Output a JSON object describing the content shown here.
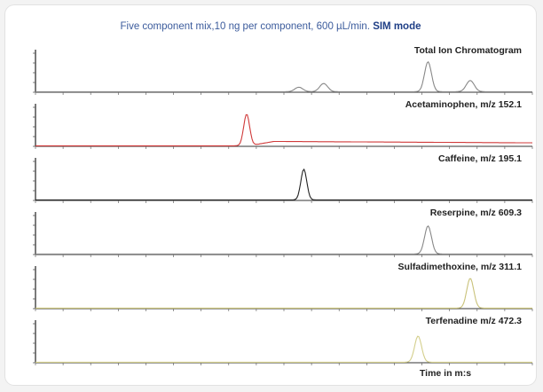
{
  "figure": {
    "title_plain": "Five component mix,10 ng per component, 600 µL/min.",
    "title_mode": "SIM mode"
  },
  "chart_data": {
    "type": "line",
    "title": "Five component mix,10 ng per component, 600 µL/min. SIM mode",
    "xlabel": "Time in m:s",
    "grid": false,
    "series": [
      {
        "name": "Total Ion Chromatogram",
        "color": "#888888",
        "peaks": [
          {
            "x": 0.53,
            "height": 0.12,
            "width": 0.008
          },
          {
            "x": 0.58,
            "height": 0.22,
            "width": 0.008
          },
          {
            "x": 0.79,
            "height": 0.8,
            "width": 0.007
          },
          {
            "x": 0.875,
            "height": 0.3,
            "width": 0.008
          }
        ],
        "baseline_drift": 0.0
      },
      {
        "name": "Acetaminophen, m/z 152.1",
        "color": "#d03a3a",
        "peaks": [
          {
            "x": 0.425,
            "height": 0.85,
            "width": 0.006
          }
        ],
        "baseline_drift": 0.12
      },
      {
        "name": "Caffeine, m/z 195.1",
        "color": "#222222",
        "peaks": [
          {
            "x": 0.54,
            "height": 0.82,
            "width": 0.006
          }
        ],
        "baseline_drift": 0.0
      },
      {
        "name": "Reserpine, m/z 609.3",
        "color": "#888888",
        "peaks": [
          {
            "x": 0.79,
            "height": 0.75,
            "width": 0.007
          }
        ],
        "baseline_drift": 0.0
      },
      {
        "name": "Sulfadimethoxine, m/z 311.1",
        "color": "#c9c27a",
        "peaks": [
          {
            "x": 0.875,
            "height": 0.8,
            "width": 0.007
          }
        ],
        "baseline_drift": 0.0
      },
      {
        "name": "Terfenadine m/z 472.3",
        "color": "#d4cf8c",
        "peaks": [
          {
            "x": 0.77,
            "height": 0.7,
            "width": 0.007
          }
        ],
        "baseline_drift": 0.0
      }
    ]
  }
}
